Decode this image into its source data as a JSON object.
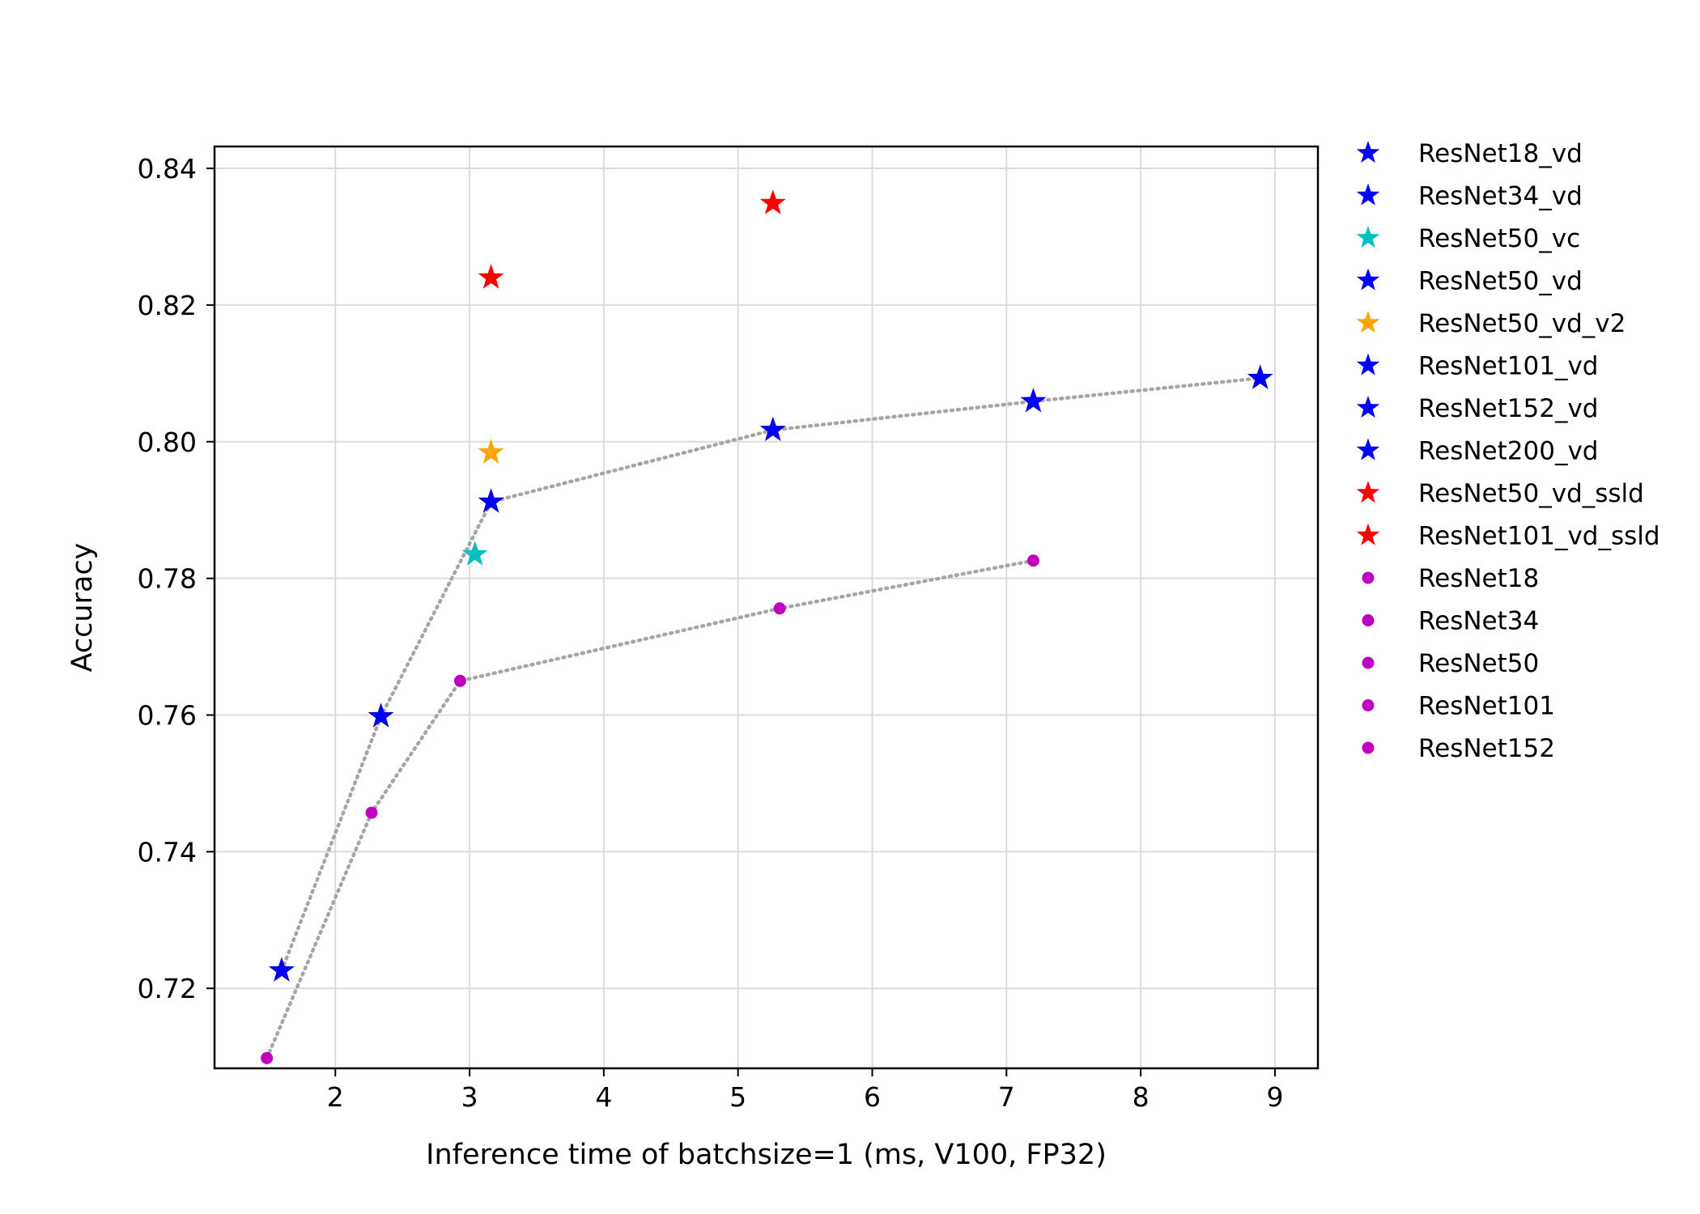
{
  "chart_data": {
    "type": "scatter",
    "title": "",
    "xlabel": "Inference time of batchsize=1 (ms, V100, FP32)",
    "ylabel": "Accuracy",
    "xlim": [
      1.1,
      9.32
    ],
    "ylim": [
      0.7083,
      0.8432
    ],
    "xticks": [
      2,
      3,
      4,
      5,
      6,
      7,
      8,
      9
    ],
    "xtick_labels": [
      "2",
      "3",
      "4",
      "5",
      "6",
      "7",
      "8",
      "9"
    ],
    "yticks": [
      0.72,
      0.74,
      0.76,
      0.78,
      0.8,
      0.82,
      0.84
    ],
    "ytick_labels": [
      "0.72",
      "0.74",
      "0.76",
      "0.78",
      "0.80",
      "0.82",
      "0.84"
    ],
    "grid": true,
    "legend_position": "outside-right",
    "series": [
      {
        "name": "ResNet18_vd",
        "marker": "star",
        "color": "#0000ff",
        "x": [
          1.6
        ],
        "y": [
          0.7226
        ]
      },
      {
        "name": "ResNet34_vd",
        "marker": "star",
        "color": "#0000ff",
        "x": [
          2.34
        ],
        "y": [
          0.7598
        ]
      },
      {
        "name": "ResNet50_vc",
        "marker": "star",
        "color": "#00bfbf",
        "x": [
          3.04
        ],
        "y": [
          0.7835
        ]
      },
      {
        "name": "ResNet50_vd",
        "marker": "star",
        "color": "#0000ff",
        "x": [
          3.16
        ],
        "y": [
          0.7912
        ]
      },
      {
        "name": "ResNet50_vd_v2",
        "marker": "star",
        "color": "#ffa500",
        "x": [
          3.16
        ],
        "y": [
          0.7984
        ]
      },
      {
        "name": "ResNet101_vd",
        "marker": "star",
        "color": "#0000ff",
        "x": [
          5.26
        ],
        "y": [
          0.8017
        ]
      },
      {
        "name": "ResNet152_vd",
        "marker": "star",
        "color": "#0000ff",
        "x": [
          7.2
        ],
        "y": [
          0.8059
        ]
      },
      {
        "name": "ResNet200_vd",
        "marker": "star",
        "color": "#0000ff",
        "x": [
          8.89
        ],
        "y": [
          0.8093
        ]
      },
      {
        "name": "ResNet50_vd_ssld",
        "marker": "star",
        "color": "#ff0000",
        "x": [
          3.16
        ],
        "y": [
          0.824
        ]
      },
      {
        "name": "ResNet101_vd_ssld",
        "marker": "star",
        "color": "#ff0000",
        "x": [
          5.26
        ],
        "y": [
          0.8349
        ]
      },
      {
        "name": "ResNet18",
        "marker": "circle",
        "color": "#bf00bf",
        "x": [
          1.49
        ],
        "y": [
          0.7098
        ]
      },
      {
        "name": "ResNet34",
        "marker": "circle",
        "color": "#bf00bf",
        "x": [
          2.27
        ],
        "y": [
          0.7457
        ]
      },
      {
        "name": "ResNet50",
        "marker": "circle",
        "color": "#bf00bf",
        "x": [
          2.93
        ],
        "y": [
          0.765
        ]
      },
      {
        "name": "ResNet101",
        "marker": "circle",
        "color": "#bf00bf",
        "x": [
          5.31
        ],
        "y": [
          0.7756
        ]
      },
      {
        "name": "ResNet152",
        "marker": "circle",
        "color": "#bf00bf",
        "x": [
          7.2
        ],
        "y": [
          0.7826
        ]
      }
    ],
    "trend_lines": [
      {
        "style": "dotted",
        "color": "#a6a6a6",
        "x": [
          1.6,
          2.34,
          3.16,
          5.26,
          7.2,
          8.89
        ],
        "y": [
          0.7226,
          0.7598,
          0.7912,
          0.8017,
          0.8059,
          0.8093
        ]
      },
      {
        "style": "dotted",
        "color": "#a6a6a6",
        "x": [
          1.49,
          2.27,
          2.93,
          5.31,
          7.2
        ],
        "y": [
          0.7098,
          0.7457,
          0.765,
          0.7756,
          0.7826
        ]
      }
    ]
  }
}
